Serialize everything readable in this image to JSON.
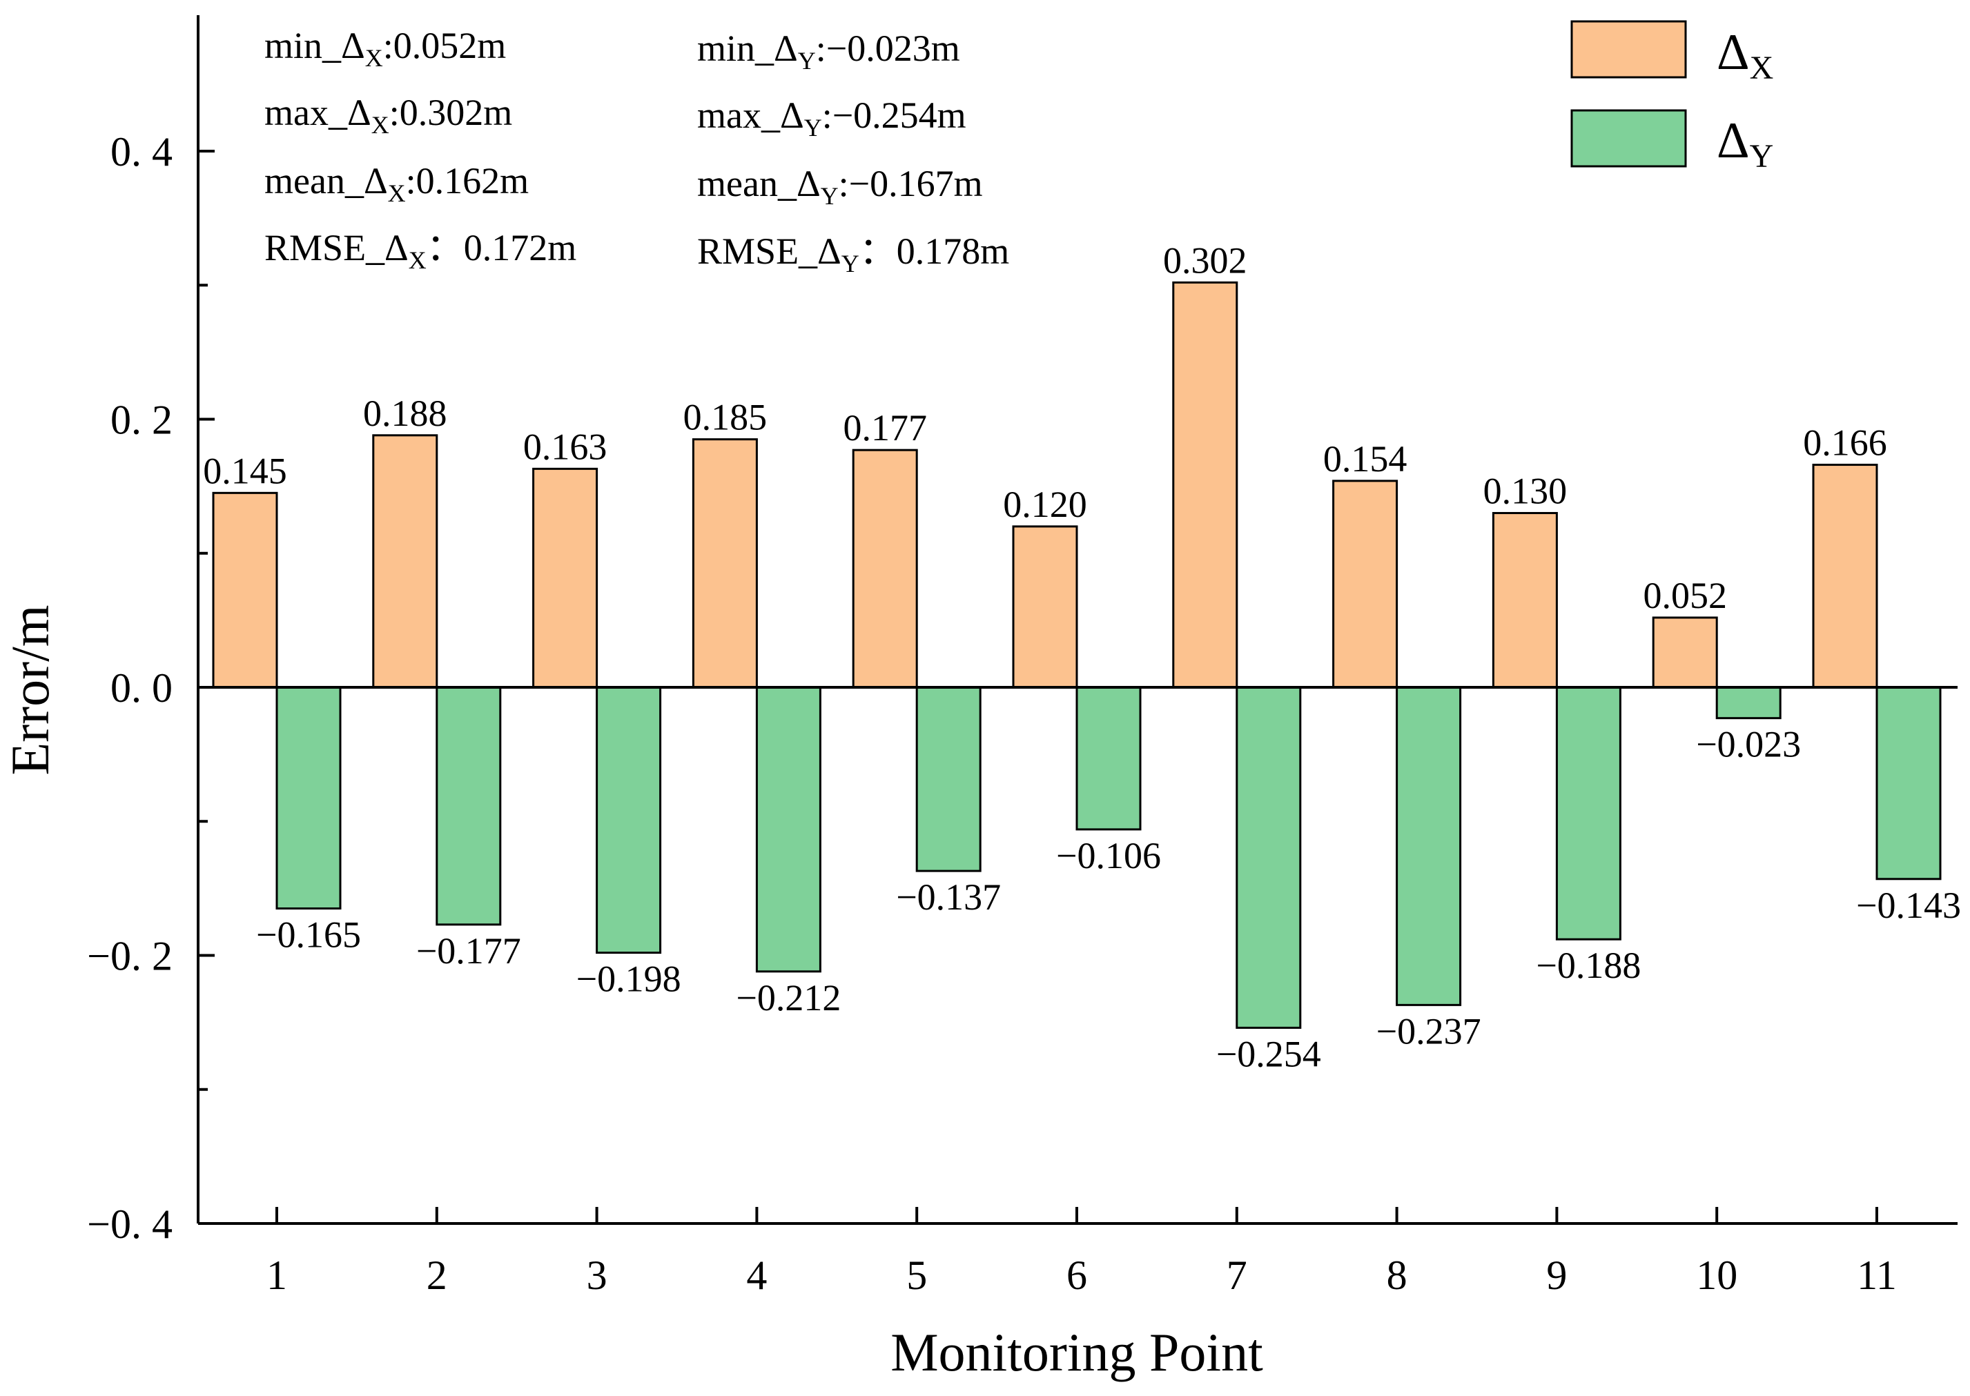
{
  "chart_data": {
    "type": "bar",
    "xlabel": "Monitoring Point",
    "ylabel": "Error/m",
    "ylim": [
      -0.4,
      0.5
    ],
    "yticks": [
      {
        "value": 0.4,
        "label": "0. 4"
      },
      {
        "value": 0.2,
        "label": "0. 2"
      },
      {
        "value": 0.0,
        "label": "0. 0"
      },
      {
        "value": -0.2,
        "label": "−0. 2"
      },
      {
        "value": -0.4,
        "label": "−0. 4"
      }
    ],
    "categories": [
      "1",
      "2",
      "3",
      "4",
      "5",
      "6",
      "7",
      "8",
      "9",
      "10",
      "11"
    ],
    "series": [
      {
        "name": "Δ",
        "sub": "X",
        "color": "#FCC28F",
        "values": [
          0.145,
          0.188,
          0.163,
          0.185,
          0.177,
          0.12,
          0.302,
          0.154,
          0.13,
          0.052,
          0.166
        ],
        "labels": [
          "0.145",
          "0.188",
          "0.163",
          "0.185",
          "0.177",
          "0.120",
          "0.302",
          "0.154",
          "0.130",
          "0.052",
          "0.166"
        ]
      },
      {
        "name": "Δ",
        "sub": "Y",
        "color": "#7FD199",
        "values": [
          -0.165,
          -0.177,
          -0.198,
          -0.212,
          -0.137,
          -0.106,
          -0.254,
          -0.237,
          -0.188,
          -0.023,
          -0.143
        ],
        "labels": [
          "−0.165",
          "−0.177",
          "−0.198",
          "−0.212",
          "−0.137",
          "−0.106",
          "−0.254",
          "−0.237",
          "−0.188",
          "−0.023",
          "−0.143"
        ]
      }
    ],
    "annotations": {
      "x": [
        {
          "pre": "min_Δ",
          "sub": "X",
          "post": ":0.052m"
        },
        {
          "pre": "max_Δ",
          "sub": "X",
          "post": ":0.302m"
        },
        {
          "pre": "mean_Δ",
          "sub": "X",
          "post": ":0.162m"
        },
        {
          "pre": "RMSE_Δ",
          "sub": "X",
          "post": "：0.172m"
        }
      ],
      "y": [
        {
          "pre": "min_Δ",
          "sub": "Y",
          "post": ":−0.023m"
        },
        {
          "pre": "max_Δ",
          "sub": "Y",
          "post": ":−0.254m"
        },
        {
          "pre": "mean_Δ",
          "sub": "Y",
          "post": ":−0.167m"
        },
        {
          "pre": "RMSE_Δ",
          "sub": "Y",
          "post": "：0.178m"
        }
      ]
    }
  }
}
